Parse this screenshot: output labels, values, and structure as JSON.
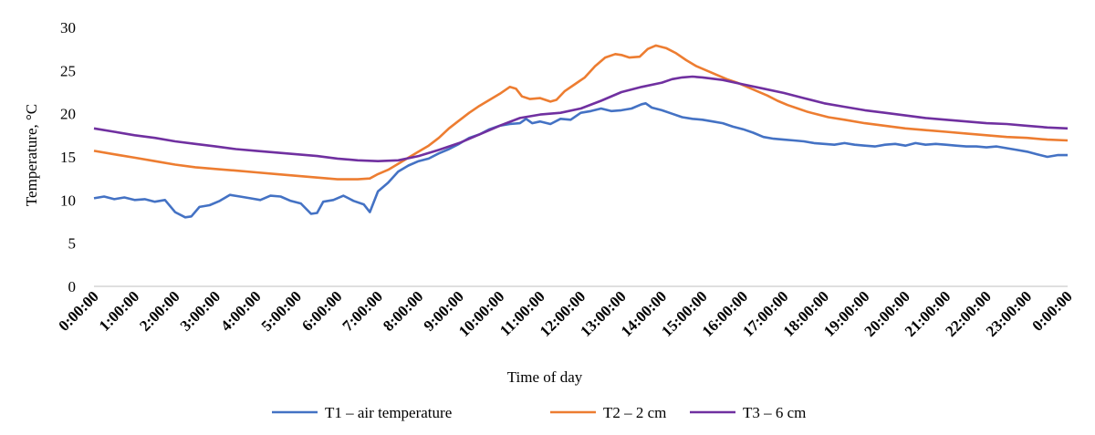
{
  "chart_data": {
    "type": "line",
    "xlabel": "Time of day",
    "ylabel": "Temperature, °C",
    "ylim": [
      0,
      30
    ],
    "y_ticks": [
      0,
      5,
      10,
      15,
      20,
      25,
      30
    ],
    "x_ticks": [
      "0:00:00",
      "1:00:00",
      "2:00:00",
      "3:00:00",
      "4:00:00",
      "5:00:00",
      "6:00:00",
      "7:00:00",
      "8:00:00",
      "9:00:00",
      "10:00:00",
      "11:00:00",
      "12:00:00",
      "13:00:00",
      "14:00:00",
      "15:00:00",
      "16:00:00",
      "17:00:00",
      "18:00:00",
      "19:00:00",
      "20:00:00",
      "21:00:00",
      "22:00:00",
      "23:00:00",
      "0:00:00"
    ],
    "x_unit": "hours",
    "grid": false,
    "legend_position": "bottom",
    "series": [
      {
        "name": "T1 – air temperature",
        "color": "#4472C4",
        "points": [
          [
            0,
            10.2
          ],
          [
            0.25,
            10.4
          ],
          [
            0.5,
            10.1
          ],
          [
            0.75,
            10.3
          ],
          [
            1,
            10.0
          ],
          [
            1.25,
            10.1
          ],
          [
            1.5,
            9.8
          ],
          [
            1.75,
            10.0
          ],
          [
            2,
            8.6
          ],
          [
            2.25,
            8.0
          ],
          [
            2.4,
            8.1
          ],
          [
            2.6,
            9.2
          ],
          [
            2.85,
            9.4
          ],
          [
            3.1,
            9.9
          ],
          [
            3.35,
            10.6
          ],
          [
            3.6,
            10.4
          ],
          [
            3.85,
            10.2
          ],
          [
            4.1,
            10.0
          ],
          [
            4.35,
            10.5
          ],
          [
            4.6,
            10.4
          ],
          [
            4.85,
            9.9
          ],
          [
            5.1,
            9.6
          ],
          [
            5.35,
            8.4
          ],
          [
            5.5,
            8.5
          ],
          [
            5.65,
            9.8
          ],
          [
            5.9,
            10.0
          ],
          [
            6.15,
            10.5
          ],
          [
            6.4,
            9.9
          ],
          [
            6.65,
            9.5
          ],
          [
            6.8,
            8.6
          ],
          [
            7.0,
            11.0
          ],
          [
            7.25,
            12.0
          ],
          [
            7.5,
            13.3
          ],
          [
            7.75,
            14.0
          ],
          [
            8.0,
            14.5
          ],
          [
            8.25,
            14.8
          ],
          [
            8.5,
            15.4
          ],
          [
            8.75,
            15.9
          ],
          [
            9.0,
            16.5
          ],
          [
            9.25,
            17.2
          ],
          [
            9.5,
            17.6
          ],
          [
            9.75,
            18.2
          ],
          [
            10.0,
            18.6
          ],
          [
            10.25,
            18.8
          ],
          [
            10.5,
            18.9
          ],
          [
            10.65,
            19.4
          ],
          [
            10.8,
            18.9
          ],
          [
            11.0,
            19.1
          ],
          [
            11.25,
            18.8
          ],
          [
            11.5,
            19.4
          ],
          [
            11.75,
            19.3
          ],
          [
            12.0,
            20.1
          ],
          [
            12.25,
            20.3
          ],
          [
            12.5,
            20.6
          ],
          [
            12.75,
            20.3
          ],
          [
            13.0,
            20.4
          ],
          [
            13.25,
            20.6
          ],
          [
            13.5,
            21.1
          ],
          [
            13.6,
            21.2
          ],
          [
            13.75,
            20.7
          ],
          [
            14.0,
            20.4
          ],
          [
            14.25,
            20.0
          ],
          [
            14.5,
            19.6
          ],
          [
            14.75,
            19.4
          ],
          [
            15.0,
            19.3
          ],
          [
            15.25,
            19.1
          ],
          [
            15.5,
            18.9
          ],
          [
            15.75,
            18.5
          ],
          [
            16.0,
            18.2
          ],
          [
            16.25,
            17.8
          ],
          [
            16.5,
            17.3
          ],
          [
            16.75,
            17.1
          ],
          [
            17.0,
            17.0
          ],
          [
            17.25,
            16.9
          ],
          [
            17.5,
            16.8
          ],
          [
            17.75,
            16.6
          ],
          [
            18.0,
            16.5
          ],
          [
            18.25,
            16.4
          ],
          [
            18.5,
            16.6
          ],
          [
            18.75,
            16.4
          ],
          [
            19.0,
            16.3
          ],
          [
            19.25,
            16.2
          ],
          [
            19.5,
            16.4
          ],
          [
            19.75,
            16.5
          ],
          [
            20.0,
            16.3
          ],
          [
            20.25,
            16.6
          ],
          [
            20.5,
            16.4
          ],
          [
            20.75,
            16.5
          ],
          [
            21.0,
            16.4
          ],
          [
            21.25,
            16.3
          ],
          [
            21.5,
            16.2
          ],
          [
            21.75,
            16.2
          ],
          [
            22.0,
            16.1
          ],
          [
            22.25,
            16.2
          ],
          [
            22.5,
            16.0
          ],
          [
            22.75,
            15.8
          ],
          [
            23.0,
            15.6
          ],
          [
            23.25,
            15.3
          ],
          [
            23.5,
            15.0
          ],
          [
            23.75,
            15.2
          ],
          [
            24.0,
            15.2
          ]
        ]
      },
      {
        "name": "T2 – 2 cm",
        "color": "#ED7D31",
        "points": [
          [
            0,
            15.7
          ],
          [
            0.5,
            15.3
          ],
          [
            1,
            14.9
          ],
          [
            1.5,
            14.5
          ],
          [
            2,
            14.1
          ],
          [
            2.5,
            13.8
          ],
          [
            3,
            13.6
          ],
          [
            3.5,
            13.4
          ],
          [
            4,
            13.2
          ],
          [
            4.5,
            13.0
          ],
          [
            5,
            12.8
          ],
          [
            5.5,
            12.6
          ],
          [
            6,
            12.4
          ],
          [
            6.5,
            12.4
          ],
          [
            6.8,
            12.5
          ],
          [
            7.0,
            13.0
          ],
          [
            7.25,
            13.5
          ],
          [
            7.5,
            14.2
          ],
          [
            7.75,
            14.9
          ],
          [
            8.0,
            15.6
          ],
          [
            8.25,
            16.3
          ],
          [
            8.5,
            17.2
          ],
          [
            8.75,
            18.3
          ],
          [
            9.0,
            19.2
          ],
          [
            9.25,
            20.1
          ],
          [
            9.5,
            20.9
          ],
          [
            9.75,
            21.6
          ],
          [
            10.0,
            22.3
          ],
          [
            10.25,
            23.1
          ],
          [
            10.4,
            22.9
          ],
          [
            10.55,
            22.0
          ],
          [
            10.75,
            21.7
          ],
          [
            11.0,
            21.8
          ],
          [
            11.25,
            21.4
          ],
          [
            11.4,
            21.6
          ],
          [
            11.6,
            22.6
          ],
          [
            11.85,
            23.4
          ],
          [
            12.1,
            24.2
          ],
          [
            12.35,
            25.5
          ],
          [
            12.6,
            26.5
          ],
          [
            12.85,
            26.9
          ],
          [
            13.0,
            26.8
          ],
          [
            13.2,
            26.5
          ],
          [
            13.45,
            26.6
          ],
          [
            13.65,
            27.5
          ],
          [
            13.85,
            27.9
          ],
          [
            14.1,
            27.6
          ],
          [
            14.35,
            27.0
          ],
          [
            14.6,
            26.2
          ],
          [
            14.85,
            25.5
          ],
          [
            15.1,
            25.0
          ],
          [
            15.35,
            24.5
          ],
          [
            15.6,
            24.0
          ],
          [
            15.85,
            23.6
          ],
          [
            16.1,
            23.1
          ],
          [
            16.35,
            22.6
          ],
          [
            16.6,
            22.1
          ],
          [
            16.85,
            21.5
          ],
          [
            17.1,
            21.0
          ],
          [
            17.35,
            20.6
          ],
          [
            17.6,
            20.2
          ],
          [
            17.85,
            19.9
          ],
          [
            18.1,
            19.6
          ],
          [
            18.5,
            19.3
          ],
          [
            19.0,
            18.9
          ],
          [
            19.5,
            18.6
          ],
          [
            20.0,
            18.3
          ],
          [
            20.5,
            18.1
          ],
          [
            21.0,
            17.9
          ],
          [
            21.5,
            17.7
          ],
          [
            22.0,
            17.5
          ],
          [
            22.5,
            17.3
          ],
          [
            23.0,
            17.2
          ],
          [
            23.5,
            17.0
          ],
          [
            24.0,
            16.9
          ]
        ]
      },
      {
        "name": "T3 – 6 cm",
        "color": "#7030A0",
        "points": [
          [
            0,
            18.3
          ],
          [
            0.5,
            17.9
          ],
          [
            1,
            17.5
          ],
          [
            1.5,
            17.2
          ],
          [
            2,
            16.8
          ],
          [
            2.5,
            16.5
          ],
          [
            3,
            16.2
          ],
          [
            3.5,
            15.9
          ],
          [
            4,
            15.7
          ],
          [
            4.5,
            15.5
          ],
          [
            5,
            15.3
          ],
          [
            5.5,
            15.1
          ],
          [
            6,
            14.8
          ],
          [
            6.5,
            14.6
          ],
          [
            7.0,
            14.5
          ],
          [
            7.5,
            14.6
          ],
          [
            8.0,
            15.1
          ],
          [
            8.5,
            15.8
          ],
          [
            9.0,
            16.6
          ],
          [
            9.5,
            17.6
          ],
          [
            10.0,
            18.6
          ],
          [
            10.5,
            19.5
          ],
          [
            11.0,
            19.9
          ],
          [
            11.5,
            20.1
          ],
          [
            12.0,
            20.6
          ],
          [
            12.5,
            21.5
          ],
          [
            13.0,
            22.5
          ],
          [
            13.5,
            23.1
          ],
          [
            14.0,
            23.6
          ],
          [
            14.25,
            24.0
          ],
          [
            14.5,
            24.2
          ],
          [
            14.75,
            24.3
          ],
          [
            15.0,
            24.2
          ],
          [
            15.5,
            23.9
          ],
          [
            16.0,
            23.4
          ],
          [
            16.5,
            22.9
          ],
          [
            17.0,
            22.4
          ],
          [
            17.5,
            21.8
          ],
          [
            18.0,
            21.2
          ],
          [
            18.5,
            20.8
          ],
          [
            19.0,
            20.4
          ],
          [
            19.5,
            20.1
          ],
          [
            20.0,
            19.8
          ],
          [
            20.5,
            19.5
          ],
          [
            21.0,
            19.3
          ],
          [
            21.5,
            19.1
          ],
          [
            22.0,
            18.9
          ],
          [
            22.5,
            18.8
          ],
          [
            23.0,
            18.6
          ],
          [
            23.5,
            18.4
          ],
          [
            24.0,
            18.3
          ]
        ]
      }
    ]
  }
}
